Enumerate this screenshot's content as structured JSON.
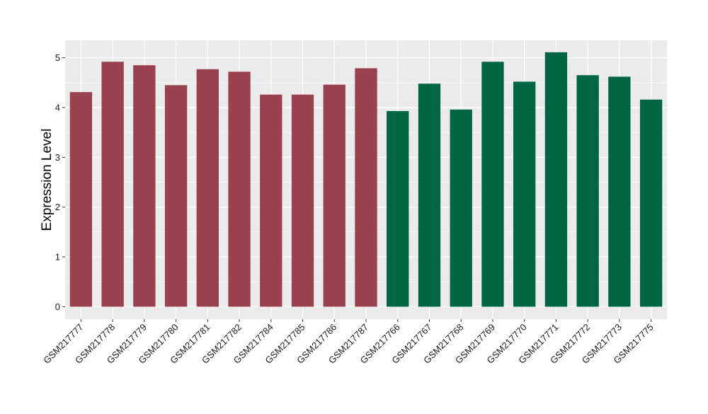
{
  "chart_data": {
    "type": "bar",
    "title": "",
    "xlabel": "",
    "ylabel": "Expression Level",
    "ylim": [
      -0.25,
      5.35
    ],
    "yticks": [
      0,
      1,
      2,
      3,
      4,
      5
    ],
    "grid": true,
    "categories": [
      "GSM217777",
      "GSM217778",
      "GSM217779",
      "GSM217780",
      "GSM217781",
      "GSM217782",
      "GSM217784",
      "GSM217785",
      "GSM217786",
      "GSM217787",
      "GSM217766",
      "GSM217767",
      "GSM217768",
      "GSM217769",
      "GSM217770",
      "GSM217771",
      "GSM217772",
      "GSM217773",
      "GSM217775"
    ],
    "values": [
      4.31,
      4.92,
      4.85,
      4.45,
      4.77,
      4.72,
      4.26,
      4.26,
      4.46,
      4.79,
      3.93,
      4.48,
      3.96,
      4.92,
      4.52,
      5.11,
      4.65,
      4.62,
      4.16
    ],
    "groups": [
      0,
      0,
      0,
      0,
      0,
      0,
      0,
      0,
      0,
      0,
      1,
      1,
      1,
      1,
      1,
      1,
      1,
      1,
      1
    ],
    "group_colors": [
      "#9a414f",
      "#006642"
    ],
    "panel_color": "#ebebeb",
    "grid_color": "#ffffff"
  }
}
